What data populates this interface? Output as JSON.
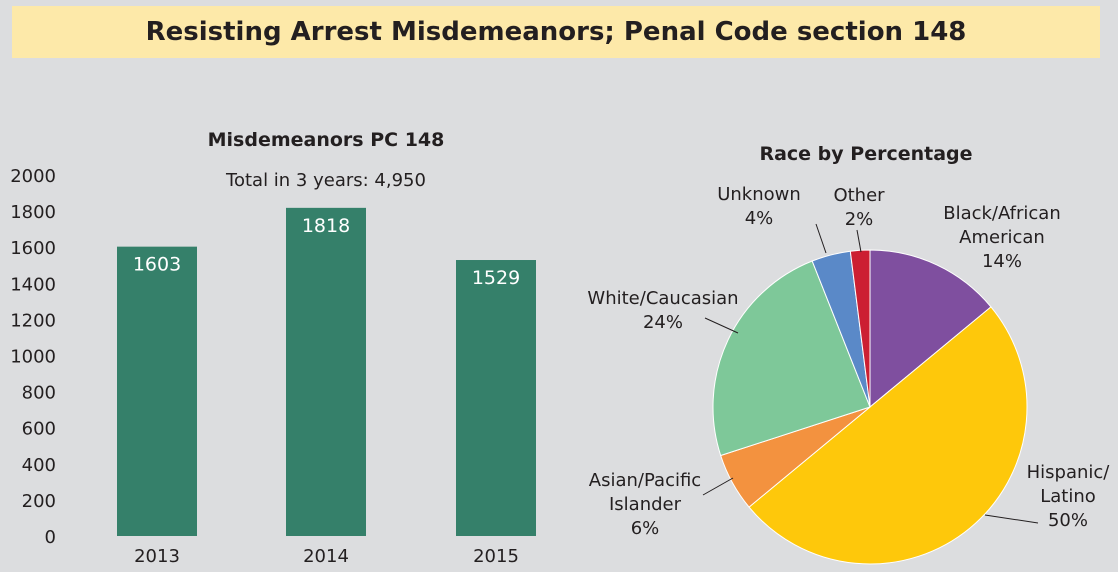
{
  "banner": {
    "title": "Resisting Arrest Misdemeanors; Penal Code section 148"
  },
  "chart_data": [
    {
      "type": "bar",
      "title": "Misdemeanors PC 148",
      "subtitle": "Total in 3 years: 4,950",
      "categories": [
        "2013",
        "2014",
        "2015"
      ],
      "values": [
        1603,
        1818,
        1529
      ],
      "ylim": [
        0,
        2000
      ],
      "yticks": [
        0,
        200,
        400,
        600,
        800,
        1000,
        1200,
        1400,
        1600,
        1800,
        2000
      ],
      "bar_color": "#35806a",
      "grid": false
    },
    {
      "type": "pie",
      "title": "Race by Percentage",
      "slices": [
        {
          "label": [
            "Black/African",
            "American"
          ],
          "value": 14,
          "value_label": "14%",
          "color": "#7f4f9f"
        },
        {
          "label": [
            "Hispanic/",
            "Latino"
          ],
          "value": 50,
          "value_label": "50%",
          "color": "#fec80b"
        },
        {
          "label": [
            "Asian/Pacific",
            "Islander"
          ],
          "value": 6,
          "value_label": "6%",
          "color": "#f3923f"
        },
        {
          "label": [
            "White/Caucasian"
          ],
          "value": 24,
          "value_label": "24%",
          "color": "#7ec899"
        },
        {
          "label": [
            "Unknown"
          ],
          "value": 4,
          "value_label": "4%",
          "color": "#5a89c8"
        },
        {
          "label": [
            "Other"
          ],
          "value": 2,
          "value_label": "2%",
          "color": "#cc1f32"
        }
      ]
    }
  ]
}
